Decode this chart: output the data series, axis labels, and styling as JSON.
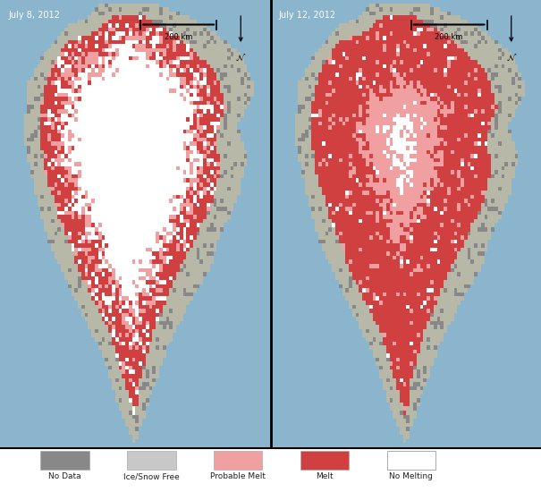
{
  "date_left": "July 8, 2012",
  "date_right": "July 12, 2012",
  "scale_label": "200 km",
  "legend_items": [
    {
      "label": "No Data",
      "color": "#888888"
    },
    {
      "label": "Ice/Snow Free",
      "color": "#c8c8c8"
    },
    {
      "label": "Probable Melt",
      "color": "#f0a0a0"
    },
    {
      "label": "Melt",
      "color": "#d04040"
    },
    {
      "label": "No Melting",
      "color": "#ffffff"
    }
  ],
  "ocean_color": "#8ab5cc",
  "coastal_land_color": "#b8b8a8",
  "melt_color": "#d04040",
  "probable_melt_color": "#f0a0a0",
  "no_data_color": "#888888",
  "ice_free_color": "#c8c8c8",
  "ice_color": "#ffffff",
  "figsize": [
    6.05,
    5.5
  ],
  "dpi": 100
}
